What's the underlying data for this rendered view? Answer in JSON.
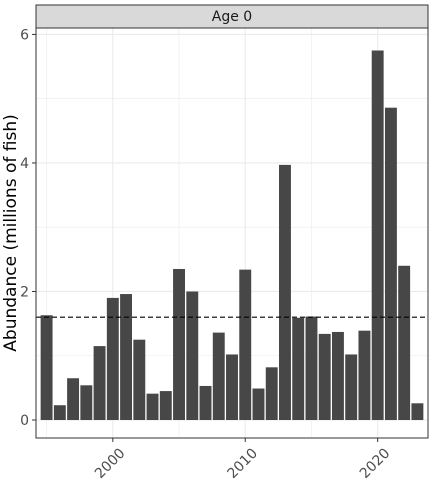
{
  "chart_data": {
    "type": "bar",
    "facet_label": "Age 0",
    "ylabel": "Abundance (millions of fish)",
    "xlabel": "",
    "x_ticks": [
      2000,
      2010,
      2020
    ],
    "y_ticks": [
      0,
      2,
      4,
      6
    ],
    "xlim": [
      1994.2,
      2023.8
    ],
    "ylim": [
      -0.28,
      6.1
    ],
    "grid": true,
    "reference_line": {
      "value": 1.6,
      "style": "dashed"
    },
    "colors": {
      "bar": "#474747",
      "strip": "#d9d9d9",
      "grid": "#ebebeb",
      "reference": "#000000"
    },
    "x": [
      1995,
      1996,
      1997,
      1998,
      1999,
      2000,
      2001,
      2002,
      2003,
      2004,
      2005,
      2006,
      2007,
      2008,
      2009,
      2010,
      2011,
      2012,
      2013,
      2014,
      2015,
      2016,
      2017,
      2018,
      2019,
      2020,
      2021,
      2022,
      2023
    ],
    "values": [
      1.63,
      0.23,
      0.65,
      0.54,
      1.15,
      1.9,
      1.96,
      1.25,
      0.41,
      0.45,
      2.35,
      2.0,
      0.53,
      1.36,
      1.02,
      2.34,
      0.49,
      0.82,
      3.97,
      1.59,
      1.61,
      1.34,
      1.37,
      1.02,
      1.39,
      5.75,
      4.86,
      2.4,
      0.26
    ]
  }
}
